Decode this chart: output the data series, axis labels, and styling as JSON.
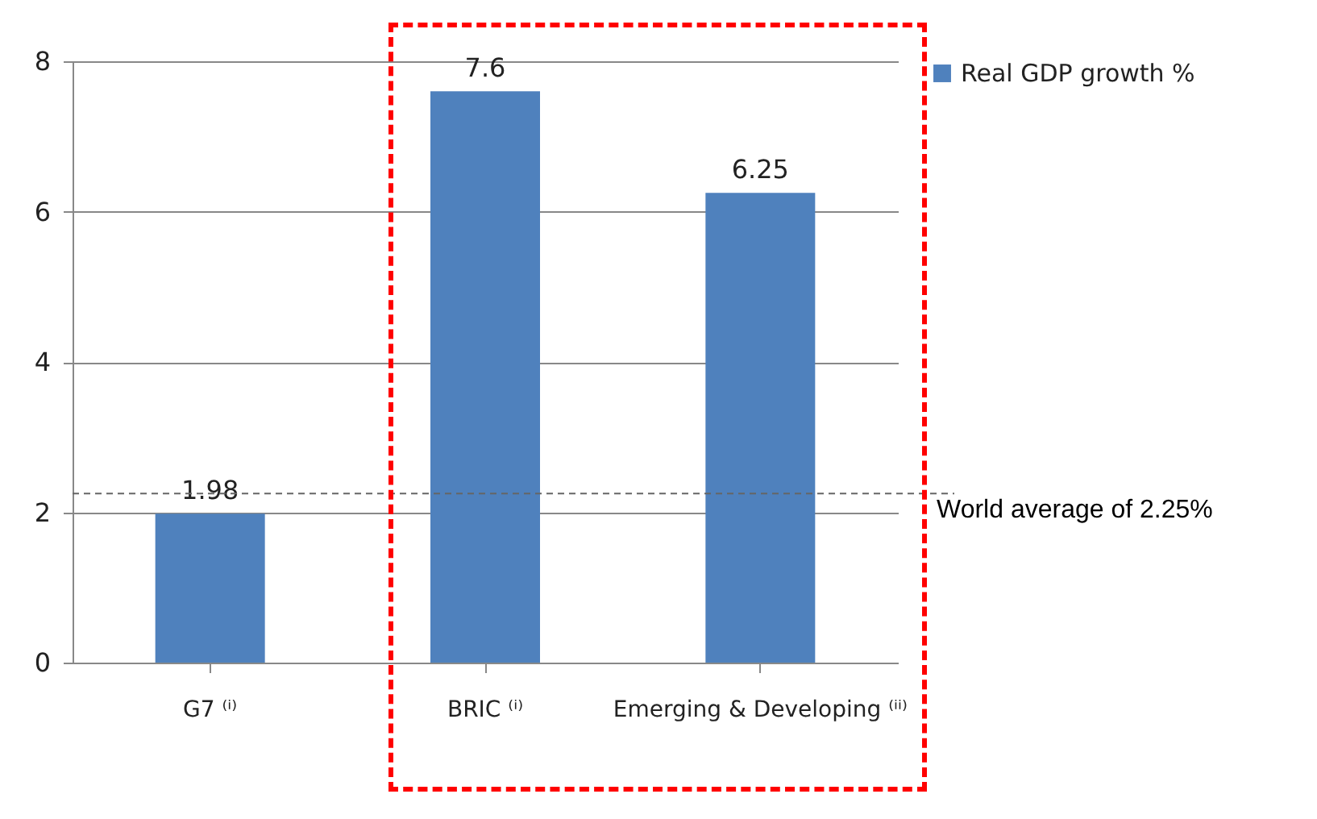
{
  "chart_data": {
    "type": "bar",
    "categories": [
      "G7 ⁽ⁱ⁾",
      "BRIC ⁽ⁱ⁾",
      "Emerging & Developing ⁽ⁱⁱ⁾"
    ],
    "series": [
      {
        "name": "Real GDP growth %",
        "color": "#4f81bd",
        "values": [
          1.98,
          7.6,
          6.25
        ]
      }
    ],
    "ylim": [
      0,
      8
    ],
    "yticks": [
      0,
      2,
      4,
      6,
      8
    ],
    "grid": "y",
    "legend": "right",
    "data_labels": true,
    "ref_lines": [
      {
        "axis": "y",
        "value": 2.25,
        "label": "World average of 2.25%",
        "color": "#666666",
        "line_style": "dashed"
      }
    ]
  }
}
